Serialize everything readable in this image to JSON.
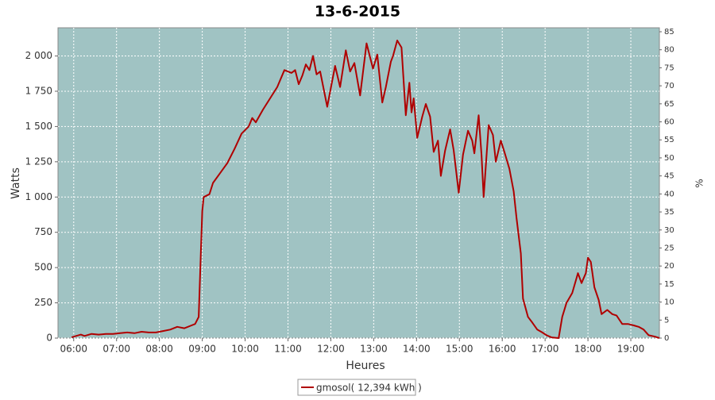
{
  "chart_data": {
    "type": "line",
    "title": "13-6-2015",
    "x_label": "Heures",
    "y_label": "Watts",
    "y2_label": "%",
    "x": [
      "05:57",
      "06:00",
      "06:10",
      "06:15",
      "06:25",
      "06:35",
      "06:45",
      "06:55",
      "07:05",
      "07:15",
      "07:25",
      "07:35",
      "07:45",
      "07:55",
      "08:05",
      "08:15",
      "08:25",
      "08:35",
      "08:45",
      "08:50",
      "08:55",
      "09:00",
      "09:02",
      "09:10",
      "09:15",
      "09:25",
      "09:35",
      "09:45",
      "09:55",
      "10:05",
      "10:10",
      "10:15",
      "10:25",
      "10:35",
      "10:45",
      "10:55",
      "11:05",
      "11:10",
      "11:15",
      "11:20",
      "11:25",
      "11:30",
      "11:35",
      "11:40",
      "11:45",
      "11:55",
      "12:06",
      "12:13",
      "12:21",
      "12:27",
      "12:33",
      "12:41",
      "12:50",
      "12:59",
      "13:05",
      "13:12",
      "13:17",
      "13:24",
      "13:27",
      "13:33",
      "13:39",
      "13:45",
      "13:50",
      "13:53",
      "13:56",
      "14:01",
      "14:08",
      "14:13",
      "14:19",
      "14:24",
      "14:30",
      "14:34",
      "14:40",
      "14:47",
      "14:52",
      "14:59",
      "15:05",
      "15:12",
      "15:18",
      "15:21",
      "15:27",
      "15:31",
      "15:34",
      "15:41",
      "15:47",
      "15:51",
      "15:58",
      "16:03",
      "16:10",
      "16:16",
      "16:20",
      "16:26",
      "16:29",
      "16:36",
      "16:42",
      "16:49",
      "16:56",
      "17:02",
      "17:09",
      "17:19",
      "17:24",
      "17:30",
      "17:38",
      "17:46",
      "17:51",
      "17:57",
      "18:00",
      "18:04",
      "18:09",
      "18:15",
      "18:19",
      "18:27",
      "18:34",
      "18:40",
      "18:48",
      "18:56",
      "19:04",
      "19:11",
      "19:18",
      "19:25",
      "19:34",
      "19:40"
    ],
    "series": [
      {
        "name": "gmosol( 12,394 kWh )",
        "color": "#b00000",
        "values": [
          5,
          10,
          25,
          15,
          30,
          25,
          30,
          30,
          35,
          40,
          35,
          45,
          40,
          40,
          50,
          60,
          80,
          70,
          90,
          100,
          150,
          900,
          1000,
          1020,
          1100,
          1170,
          1240,
          1340,
          1450,
          1500,
          1560,
          1530,
          1620,
          1700,
          1780,
          1900,
          1880,
          1900,
          1800,
          1860,
          1940,
          1900,
          2000,
          1870,
          1890,
          1640,
          1930,
          1780,
          2040,
          1890,
          1950,
          1720,
          2090,
          1910,
          2010,
          1670,
          1780,
          1960,
          2000,
          2110,
          2060,
          1580,
          1810,
          1600,
          1700,
          1420,
          1570,
          1660,
          1570,
          1320,
          1400,
          1150,
          1330,
          1480,
          1330,
          1030,
          1300,
          1470,
          1400,
          1310,
          1580,
          1300,
          1000,
          1510,
          1440,
          1250,
          1400,
          1320,
          1200,
          1040,
          850,
          600,
          280,
          150,
          110,
          60,
          40,
          20,
          5,
          0,
          150,
          250,
          320,
          460,
          390,
          460,
          570,
          540,
          360,
          270,
          170,
          200,
          170,
          160,
          100,
          100,
          90,
          80,
          60,
          20,
          10,
          0
        ]
      }
    ],
    "xlim": [
      "05:38",
      "19:40"
    ],
    "xticks": [
      "06:00",
      "07:00",
      "08:00",
      "09:00",
      "10:00",
      "11:00",
      "12:00",
      "13:00",
      "14:00",
      "15:00",
      "16:00",
      "17:00",
      "18:00",
      "19:00"
    ],
    "ylim": [
      0,
      2200
    ],
    "yticks": [
      0,
      250,
      500,
      750,
      {
        "value": 1000,
        "label": "1 000"
      },
      {
        "value": 1250,
        "label": "1 250"
      },
      {
        "value": 1500,
        "label": "1 500"
      },
      {
        "value": 1750,
        "label": "1 750"
      },
      {
        "value": 2000,
        "label": "2 000"
      }
    ],
    "y2lim": [
      0,
      86.1
    ],
    "y2ticks": [
      0,
      5,
      10,
      15,
      20,
      25,
      30,
      35,
      40,
      45,
      50,
      55,
      60,
      65,
      70,
      75,
      80,
      85
    ],
    "grid": true,
    "plot_background": "#a0c3c3",
    "legend": "bottom"
  }
}
